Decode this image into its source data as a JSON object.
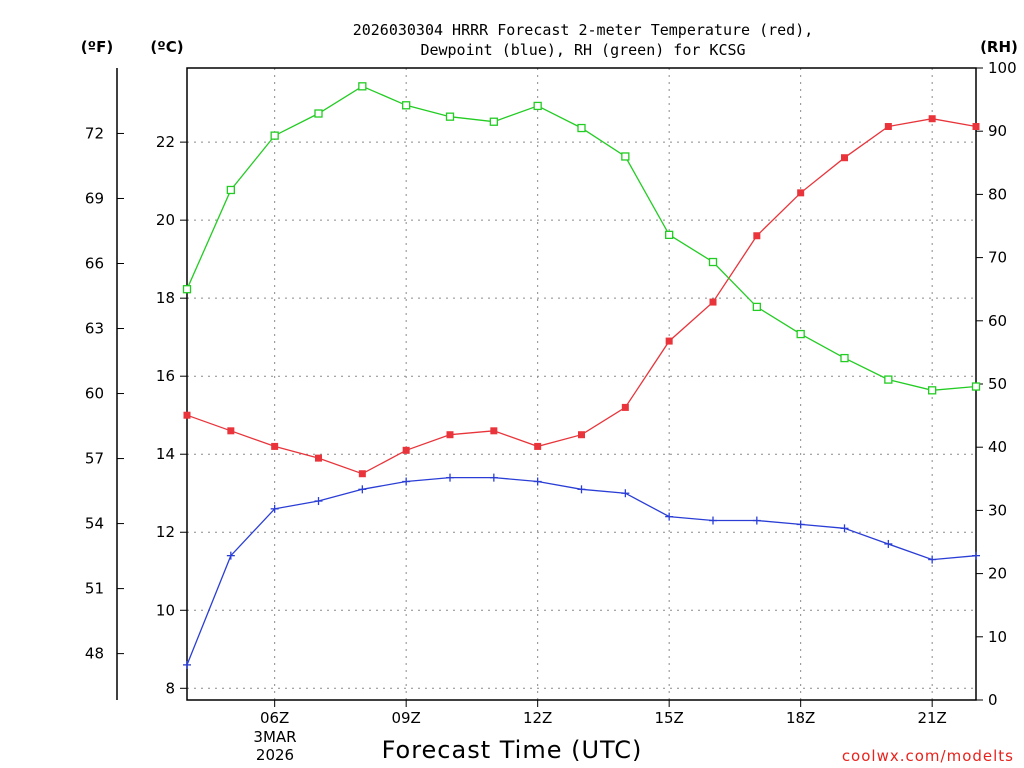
{
  "title_line1": "2026030304 HRRR Forecast 2-meter Temperature (red),",
  "title_line2": "Dewpoint (blue), RH (green) for KCSG",
  "units": {
    "fahrenheit": "(ºF)",
    "celsius": "(ºC)",
    "rh": "(RH)"
  },
  "date_label": {
    "day": "3MAR",
    "year": "2026"
  },
  "credit": "coolwx.com/modelts",
  "colors": {
    "temperature": "#e8343a",
    "dewpoint": "#2a3ed6",
    "rh": "#22cc22"
  },
  "chart_data": {
    "type": "line",
    "title": "2026030304 HRRR Forecast 2-meter Temperature (red), Dewpoint (blue), RH (green) for KCSG",
    "xlabel": "Forecast Time (UTC)",
    "x": [
      4,
      5,
      6,
      7,
      8,
      9,
      10,
      11,
      12,
      13,
      14,
      15,
      16,
      17,
      18,
      19,
      20,
      21,
      22
    ],
    "xlim": [
      4,
      22
    ],
    "x_ticks": [
      {
        "value": 6,
        "label": "06Z"
      },
      {
        "value": 9,
        "label": "09Z"
      },
      {
        "value": 12,
        "label": "12Z"
      },
      {
        "value": 15,
        "label": "15Z"
      },
      {
        "value": 18,
        "label": "18Z"
      },
      {
        "value": 21,
        "label": "21Z"
      }
    ],
    "y_celsius": {
      "label": "(ºC)",
      "range": [
        7.7,
        23.9
      ],
      "ticks": [
        8,
        10,
        12,
        14,
        16,
        18,
        20,
        22
      ]
    },
    "y_fahrenheit": {
      "label": "(ºF)",
      "ticks": [
        48,
        51,
        54,
        57,
        60,
        63,
        66,
        69,
        72
      ]
    },
    "y_rh": {
      "label": "(RH)",
      "range": [
        0,
        100
      ],
      "ticks": [
        0,
        10,
        20,
        30,
        40,
        50,
        60,
        70,
        80,
        90,
        100
      ]
    },
    "grid": true,
    "series": [
      {
        "name": "Temperature",
        "axis": "celsius",
        "marker": "filled-square",
        "values": [
          15.0,
          14.6,
          14.2,
          13.9,
          13.5,
          14.1,
          14.5,
          14.6,
          14.2,
          14.5,
          15.2,
          16.9,
          17.9,
          19.6,
          20.7,
          21.6,
          22.4,
          22.6,
          22.4
        ]
      },
      {
        "name": "Dewpoint",
        "axis": "celsius",
        "marker": "plus",
        "values": [
          8.6,
          11.4,
          12.6,
          12.8,
          13.1,
          13.3,
          13.4,
          13.4,
          13.3,
          13.1,
          13.0,
          12.4,
          12.3,
          12.3,
          12.2,
          12.1,
          11.7,
          11.3,
          11.4
        ]
      },
      {
        "name": "RH",
        "axis": "rh",
        "marker": "open-square",
        "values": [
          65,
          80.7,
          89.3,
          92.8,
          97.1,
          94.1,
          92.3,
          91.5,
          94,
          90.5,
          86,
          73.6,
          69.3,
          62.2,
          57.9,
          54.1,
          50.7,
          49,
          49.6
        ]
      }
    ]
  }
}
